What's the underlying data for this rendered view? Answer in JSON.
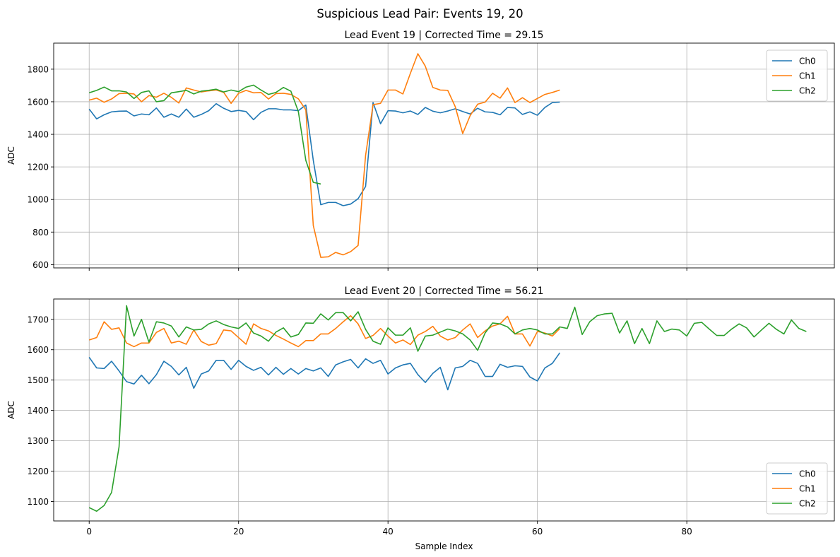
{
  "figure": {
    "suptitle": "Suspicious Lead Pair: Events 19, 20"
  },
  "colors": {
    "Ch0": "#1f77b4",
    "Ch1": "#ff7f0e",
    "Ch2": "#2ca02c",
    "grid": "#b0b0b0"
  },
  "chart_data": [
    {
      "type": "line",
      "title": "Lead Event 19 | Corrected Time = 29.15",
      "xlabel": "",
      "ylabel": "ADC",
      "xlim": [
        -4.75,
        99.75
      ],
      "ylim": [
        580,
        1960
      ],
      "xticks": [
        0,
        20,
        40,
        60,
        80
      ],
      "show_xtick_labels": false,
      "yticks": [
        600,
        800,
        1000,
        1200,
        1400,
        1600,
        1800
      ],
      "grid": true,
      "legend_position": "upper right",
      "series": [
        {
          "name": "Ch0",
          "values": [
            1555,
            1495,
            1520,
            1538,
            1542,
            1543,
            1513,
            1525,
            1520,
            1562,
            1505,
            1525,
            1505,
            1555,
            1505,
            1522,
            1545,
            1588,
            1560,
            1540,
            1547,
            1540,
            1490,
            1535,
            1557,
            1557,
            1550,
            1550,
            1545,
            1580,
            1240,
            968,
            982,
            982,
            962,
            972,
            1005,
            1080,
            1595,
            1465,
            1545,
            1543,
            1532,
            1543,
            1522,
            1565,
            1542,
            1532,
            1543,
            1557,
            1540,
            1525,
            1560,
            1538,
            1535,
            1520,
            1565,
            1562,
            1522,
            1538,
            1517,
            1565,
            1595,
            1598
          ]
        },
        {
          "name": "Ch1",
          "values": [
            1610,
            1622,
            1597,
            1617,
            1650,
            1652,
            1648,
            1600,
            1638,
            1628,
            1652,
            1627,
            1592,
            1685,
            1672,
            1660,
            1667,
            1672,
            1658,
            1590,
            1652,
            1670,
            1655,
            1657,
            1617,
            1650,
            1652,
            1645,
            1618,
            1550,
            840,
            645,
            648,
            675,
            660,
            680,
            718,
            1270,
            1582,
            1590,
            1672,
            1672,
            1648,
            1775,
            1895,
            1818,
            1688,
            1672,
            1670,
            1570,
            1405,
            1515,
            1585,
            1598,
            1652,
            1622,
            1685,
            1595,
            1625,
            1595,
            1620,
            1645,
            1657,
            1672
          ]
        },
        {
          "name": "Ch2",
          "values": [
            1655,
            1670,
            1690,
            1667,
            1667,
            1660,
            1620,
            1657,
            1667,
            1600,
            1607,
            1655,
            1662,
            1670,
            1648,
            1665,
            1670,
            1677,
            1660,
            1672,
            1662,
            1690,
            1702,
            1672,
            1645,
            1657,
            1688,
            1665,
            1540,
            1240,
            1105,
            1095
          ]
        }
      ]
    },
    {
      "type": "line",
      "title": "Lead Event 20 | Corrected Time = 56.21",
      "xlabel": "Sample Index",
      "ylabel": "ADC",
      "xlim": [
        -4.75,
        99.75
      ],
      "ylim": [
        1036,
        1767
      ],
      "xticks": [
        0,
        20,
        40,
        60,
        80
      ],
      "show_xtick_labels": true,
      "yticks": [
        1100,
        1200,
        1300,
        1400,
        1500,
        1600,
        1700
      ],
      "grid": true,
      "legend_position": "lower right",
      "series": [
        {
          "name": "Ch0",
          "values": [
            1575,
            1540,
            1538,
            1562,
            1530,
            1495,
            1487,
            1516,
            1488,
            1518,
            1562,
            1545,
            1517,
            1542,
            1473,
            1520,
            1530,
            1565,
            1565,
            1535,
            1565,
            1545,
            1532,
            1542,
            1517,
            1542,
            1519,
            1538,
            1520,
            1538,
            1530,
            1540,
            1512,
            1550,
            1560,
            1568,
            1540,
            1570,
            1555,
            1565,
            1520,
            1540,
            1550,
            1555,
            1518,
            1492,
            1522,
            1542,
            1468,
            1540,
            1545,
            1565,
            1555,
            1512,
            1512,
            1552,
            1542,
            1547,
            1545,
            1510,
            1497,
            1540,
            1555,
            1590
          ]
        },
        {
          "name": "Ch1",
          "values": [
            1632,
            1640,
            1692,
            1667,
            1672,
            1622,
            1610,
            1622,
            1622,
            1657,
            1670,
            1622,
            1628,
            1618,
            1665,
            1627,
            1615,
            1620,
            1665,
            1662,
            1640,
            1618,
            1685,
            1670,
            1662,
            1647,
            1635,
            1622,
            1610,
            1630,
            1630,
            1652,
            1652,
            1670,
            1692,
            1712,
            1685,
            1637,
            1647,
            1670,
            1645,
            1622,
            1632,
            1617,
            1648,
            1660,
            1677,
            1645,
            1632,
            1640,
            1665,
            1685,
            1640,
            1662,
            1678,
            1685,
            1710,
            1652,
            1652,
            1612,
            1660,
            1655,
            1645,
            1670
          ]
        },
        {
          "name": "Ch2",
          "values": [
            1080,
            1068,
            1087,
            1130,
            1280,
            1745,
            1645,
            1700,
            1625,
            1692,
            1688,
            1678,
            1642,
            1675,
            1665,
            1667,
            1685,
            1695,
            1683,
            1675,
            1670,
            1688,
            1655,
            1645,
            1628,
            1658,
            1672,
            1642,
            1650,
            1688,
            1687,
            1718,
            1698,
            1722,
            1722,
            1695,
            1725,
            1667,
            1628,
            1618,
            1672,
            1648,
            1648,
            1672,
            1595,
            1645,
            1648,
            1658,
            1668,
            1662,
            1652,
            1632,
            1598,
            1655,
            1688,
            1685,
            1675,
            1652,
            1665,
            1670,
            1665,
            1652,
            1652,
            1675,
            1670,
            1740,
            1650,
            1692,
            1712,
            1718,
            1720,
            1655,
            1695,
            1620,
            1670,
            1620,
            1695,
            1660,
            1668,
            1665,
            1645,
            1687,
            1690,
            1668,
            1647,
            1647,
            1668,
            1685,
            1672,
            1642,
            1665,
            1687,
            1667,
            1652,
            1698,
            1670,
            1660
          ]
        }
      ]
    }
  ]
}
